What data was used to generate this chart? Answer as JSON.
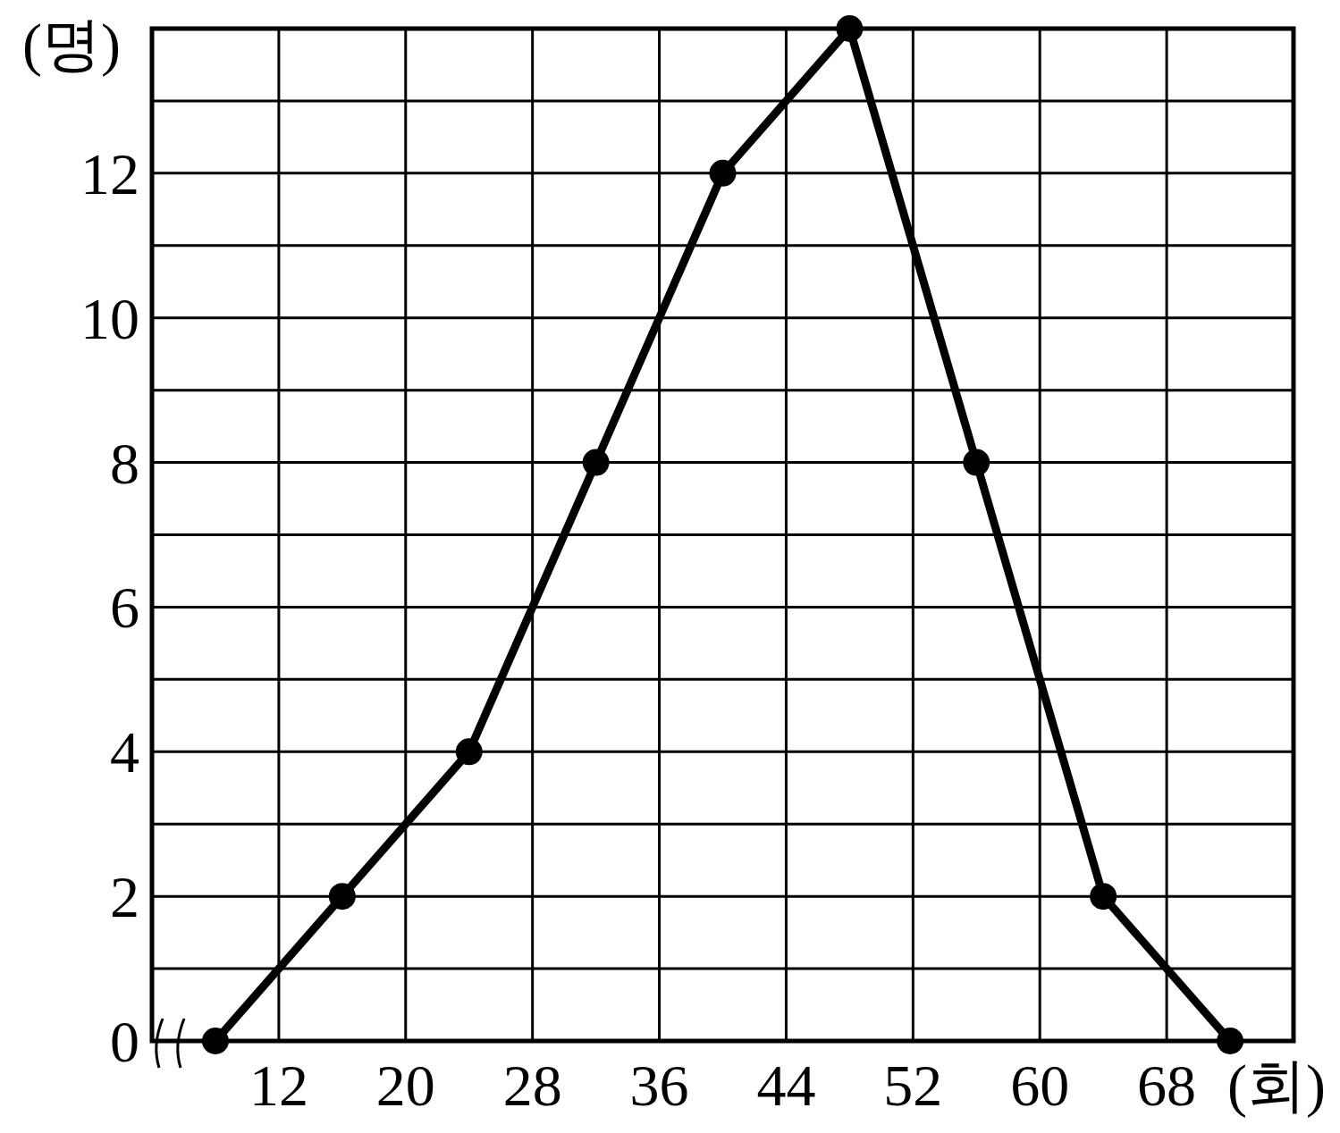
{
  "chart_data": {
    "type": "line",
    "xlabel": "(회)",
    "ylabel": "(명)",
    "x": [
      8,
      16,
      24,
      32,
      40,
      48,
      56,
      64,
      72
    ],
    "series": [
      {
        "color": "#000000",
        "values": [
          0,
          2,
          4,
          8,
          12,
          14,
          8,
          2,
          0
        ]
      }
    ],
    "xlim": [
      4,
      76
    ],
    "xticks": [
      {
        "value": 4,
        "label": null
      },
      12,
      20,
      28,
      36,
      44,
      52,
      60,
      68,
      {
        "value": 76,
        "label": null
      }
    ],
    "ylim": [
      0,
      14
    ],
    "yticks": [
      0,
      {
        "value": 1,
        "label": null
      },
      2,
      {
        "value": 3,
        "label": null
      },
      4,
      {
        "value": 5,
        "label": null
      },
      6,
      {
        "value": 7,
        "label": null
      },
      8,
      {
        "value": 9,
        "label": null
      },
      10,
      {
        "value": 11,
        "label": null
      },
      12,
      {
        "value": 13,
        "label": null
      },
      {
        "value": 14,
        "label": null
      }
    ],
    "grid": true,
    "marker": "circle",
    "line_style": "solid"
  }
}
